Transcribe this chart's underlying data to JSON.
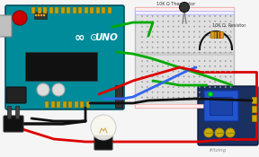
{
  "bg_color": "#f5f5f5",
  "arduino_color": "#008B9A",
  "arduino_dark": "#006070",
  "arduino_border": "#005060",
  "breadboard_color": "#e0e0e0",
  "breadboard_border": "#bbbbbb",
  "relay_bg": "#1a3060",
  "relay_blue_box": "#2060cc",
  "wire_red": "#dd0000",
  "wire_green": "#00aa00",
  "wire_blue": "#3366ee",
  "wire_black": "#111111",
  "label_thermistor": "10K Ω Thermistor",
  "label_resistor": "10K Ω  Resistor",
  "label_fritzing": "fritzing",
  "figsize": [
    2.88,
    1.75
  ],
  "dpi": 100
}
